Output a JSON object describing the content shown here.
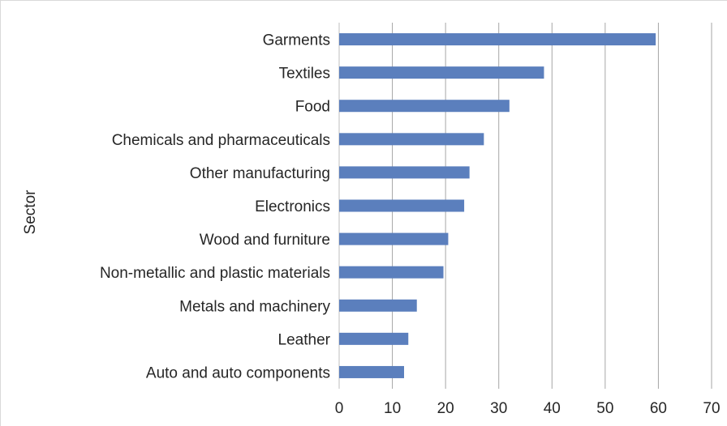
{
  "chart_data": {
    "type": "bar",
    "orientation": "horizontal",
    "title": "",
    "xlabel": "",
    "ylabel": "Sector",
    "categories": [
      "Garments",
      "Textiles",
      "Food",
      "Chemicals and pharmaceuticals",
      "Other manufacturing",
      "Electronics",
      "Wood and furniture",
      "Non-metallic and plastic materials",
      "Metals and machinery",
      "Leather",
      "Auto and auto components"
    ],
    "values": [
      59.5,
      38.5,
      32,
      27.2,
      24.5,
      23.5,
      20.5,
      19.6,
      14.6,
      13,
      12.2
    ],
    "xlim": [
      0,
      70
    ],
    "xticks": [
      "0",
      "10",
      "20",
      "30",
      "40",
      "50",
      "60",
      "70"
    ],
    "grid": "vertical",
    "legend": "none",
    "bar_color": "#5b7fbd",
    "grid_color": "#a6a6a6"
  }
}
